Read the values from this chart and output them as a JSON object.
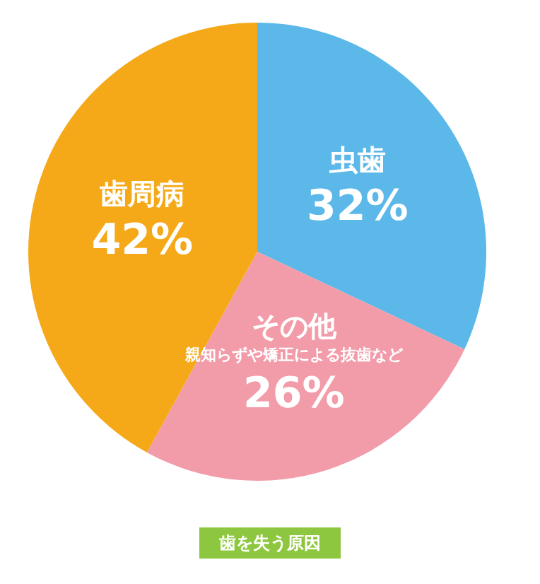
{
  "chart_data": {
    "type": "pie",
    "title": "歯を失う原因",
    "categories": [
      "虫歯",
      "その他",
      "歯周病"
    ],
    "values": [
      32,
      26,
      42
    ],
    "colors": [
      "#5bb8e8",
      "#f29ba9",
      "#f5a918"
    ],
    "value_labels": [
      "32%",
      "26%",
      "42%"
    ],
    "annotations": [
      {
        "text": "親知らずや矯正による抜歯など",
        "x": "その他"
      }
    ],
    "legend": false
  }
}
